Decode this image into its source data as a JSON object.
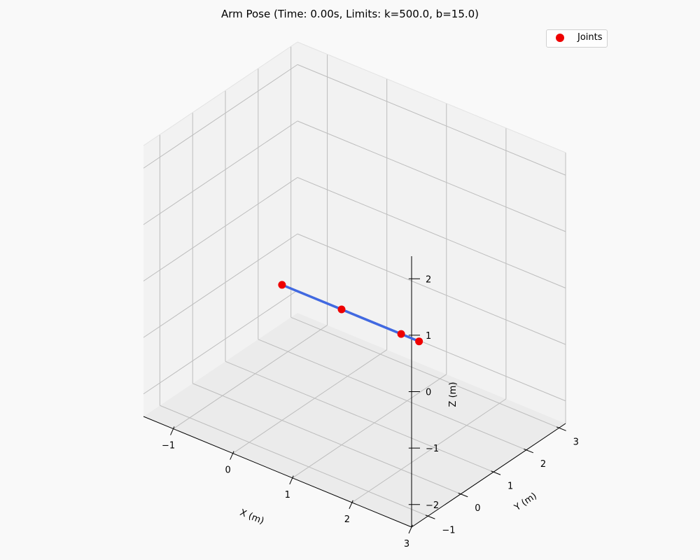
{
  "chart_data": {
    "type": "scatter",
    "projection": "3d",
    "title": "Arm Pose (Time: 0.00s, Limits: k=500.0, b=15.0)",
    "xlabel": "X (m)",
    "ylabel": "Y (m)",
    "zlabel": "Z (m)",
    "xlim": [
      -1.5,
      3.0
    ],
    "ylim": [
      -1.5,
      3.2
    ],
    "zlim": [
      -2.4,
      2.4
    ],
    "xticks": [
      -1,
      0,
      1,
      2,
      3
    ],
    "yticks": [
      -1,
      0,
      1,
      2,
      3
    ],
    "zticks": [
      -2,
      -1,
      0,
      1,
      2
    ],
    "xtick_labels": [
      "−1",
      "0",
      "1",
      "2",
      "3"
    ],
    "ytick_labels": [
      "−1",
      "0",
      "1",
      "2",
      "3"
    ],
    "ztick_labels": [
      "−2",
      "−1",
      "0",
      "1",
      "2"
    ],
    "grid": true,
    "legend_position": "top-right",
    "series": [
      {
        "name": "Joints",
        "x": [
          0.0,
          1.0,
          2.0,
          2.3
        ],
        "y": [
          0.0,
          0.0,
          0.0,
          0.0
        ],
        "z": [
          0.0,
          0.0,
          0.0,
          0.0
        ],
        "marker_color": "#ee0000",
        "line_color": "#4169e1"
      }
    ]
  }
}
